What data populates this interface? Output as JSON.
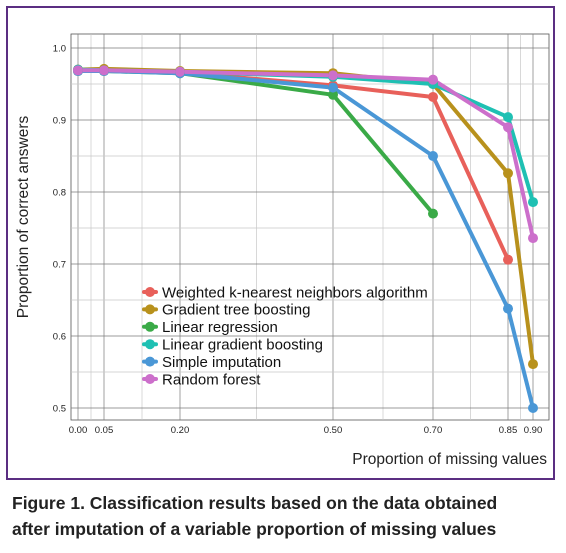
{
  "chart_data": {
    "type": "line",
    "xlabel": "Proportion of missing values",
    "ylabel": "Proportion of correct answers",
    "x": [
      0.0,
      0.05,
      0.2,
      0.5,
      0.7,
      0.85,
      0.9
    ],
    "x_tick_labels": [
      "0.00",
      "0.05",
      "0.20",
      "0.50",
      "0.70",
      "0.85",
      "0.90"
    ],
    "y_ticks": [
      0.5,
      0.6,
      0.7,
      0.8,
      0.9,
      1.0
    ],
    "y_tick_labels": [
      "0.5",
      "0.6",
      "0.7",
      "0.8",
      "0.9",
      "1.0"
    ],
    "ylim": [
      0.49,
      1.01
    ],
    "x_scale": "warped-ordinal",
    "grid": true,
    "legend_position": "bottom-left",
    "series": [
      {
        "name": "Weighted k-nearest neighbors algorithm",
        "color": "#e8605a",
        "x": [
          0.0,
          0.05,
          0.2,
          0.5,
          0.7,
          0.85
        ],
        "values": [
          0.97,
          0.969,
          0.966,
          0.948,
          0.932,
          0.706
        ]
      },
      {
        "name": "Gradient tree boosting",
        "color": "#b8911c",
        "x": [
          0.0,
          0.05,
          0.2,
          0.5,
          0.7,
          0.85,
          0.9
        ],
        "values": [
          0.97,
          0.971,
          0.968,
          0.965,
          0.95,
          0.826,
          0.561
        ]
      },
      {
        "name": "Linear regression",
        "color": "#3aaa47",
        "x": [
          0.0,
          0.05,
          0.2,
          0.5,
          0.7
        ],
        "values": [
          0.968,
          0.968,
          0.965,
          0.935,
          0.77
        ]
      },
      {
        "name": "Linear gradient boosting",
        "color": "#1fc0b3",
        "x": [
          0.0,
          0.05,
          0.2,
          0.5,
          0.7,
          0.85,
          0.9
        ],
        "values": [
          0.97,
          0.969,
          0.967,
          0.96,
          0.95,
          0.904,
          0.786
        ]
      },
      {
        "name": "Simple imputation",
        "color": "#4a97d6",
        "x": [
          0.0,
          0.05,
          0.2,
          0.5,
          0.7,
          0.85,
          0.9
        ],
        "values": [
          0.968,
          0.968,
          0.965,
          0.945,
          0.85,
          0.638,
          0.5
        ]
      },
      {
        "name": "Random forest",
        "color": "#cc6fcb",
        "x": [
          0.0,
          0.05,
          0.2,
          0.5,
          0.7,
          0.85,
          0.9
        ],
        "values": [
          0.969,
          0.969,
          0.967,
          0.962,
          0.956,
          0.89,
          0.736
        ]
      }
    ]
  },
  "caption": {
    "line1": "Figure 1. Classification results based on the data obtained",
    "line2": "after imputation of a variable proportion of missing values"
  }
}
